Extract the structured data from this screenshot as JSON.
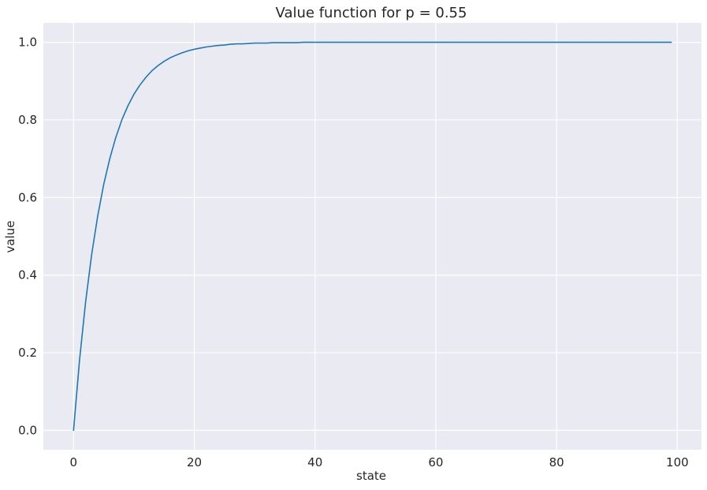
{
  "chart_data": {
    "type": "line",
    "title": "Value function for p = 0.55",
    "xlabel": "state",
    "ylabel": "value",
    "xlim": [
      -5,
      104
    ],
    "ylim": [
      -0.05,
      1.05
    ],
    "xticks": [
      0,
      20,
      40,
      60,
      80,
      100
    ],
    "yticks": [
      0.0,
      0.2,
      0.4,
      0.6,
      0.8,
      1.0
    ],
    "xtick_labels": [
      "0",
      "20",
      "40",
      "60",
      "80",
      "100"
    ],
    "ytick_labels": [
      "0.0",
      "0.2",
      "0.4",
      "0.6",
      "0.8",
      "1.0"
    ],
    "grid": true,
    "background": "#eaeaf2",
    "grid_color": "#ffffff",
    "line_color": "#1f77b4",
    "series": [
      {
        "x": [
          0,
          1,
          2,
          3,
          4,
          5,
          6,
          7,
          8,
          9,
          10,
          11,
          12,
          13,
          14,
          15,
          16,
          17,
          18,
          19,
          20,
          21,
          22,
          23,
          24,
          25,
          26,
          27,
          28,
          29,
          30,
          31,
          32,
          33,
          34,
          35,
          36,
          37,
          38,
          39,
          40,
          41,
          42,
          43,
          44,
          45,
          46,
          47,
          48,
          49,
          50,
          51,
          52,
          53,
          54,
          55,
          56,
          57,
          58,
          59,
          60,
          61,
          62,
          63,
          64,
          65,
          66,
          67,
          68,
          69,
          70,
          71,
          72,
          73,
          74,
          75,
          76,
          77,
          78,
          79,
          80,
          81,
          82,
          83,
          84,
          85,
          86,
          87,
          88,
          89,
          90,
          91,
          92,
          93,
          94,
          95,
          96,
          97,
          98,
          99
        ],
        "values": [
          0.0,
          0.182,
          0.331,
          0.453,
          0.552,
          0.634,
          0.7,
          0.755,
          0.8,
          0.836,
          0.866,
          0.89,
          0.91,
          0.927,
          0.94,
          0.951,
          0.96,
          0.967,
          0.973,
          0.978,
          0.982,
          0.985,
          0.988,
          0.99,
          0.992,
          0.993,
          0.995,
          0.996,
          0.996,
          0.997,
          0.998,
          0.998,
          0.998,
          0.999,
          0.999,
          0.999,
          0.999,
          0.999,
          1.0,
          1.0,
          1.0,
          1.0,
          1.0,
          1.0,
          1.0,
          1.0,
          1.0,
          1.0,
          1.0,
          1.0,
          1.0,
          1.0,
          1.0,
          1.0,
          1.0,
          1.0,
          1.0,
          1.0,
          1.0,
          1.0,
          1.0,
          1.0,
          1.0,
          1.0,
          1.0,
          1.0,
          1.0,
          1.0,
          1.0,
          1.0,
          1.0,
          1.0,
          1.0,
          1.0,
          1.0,
          1.0,
          1.0,
          1.0,
          1.0,
          1.0,
          1.0,
          1.0,
          1.0,
          1.0,
          1.0,
          1.0,
          1.0,
          1.0,
          1.0,
          1.0,
          1.0,
          1.0,
          1.0,
          1.0,
          1.0,
          1.0,
          1.0,
          1.0,
          1.0,
          1.0
        ]
      }
    ]
  }
}
